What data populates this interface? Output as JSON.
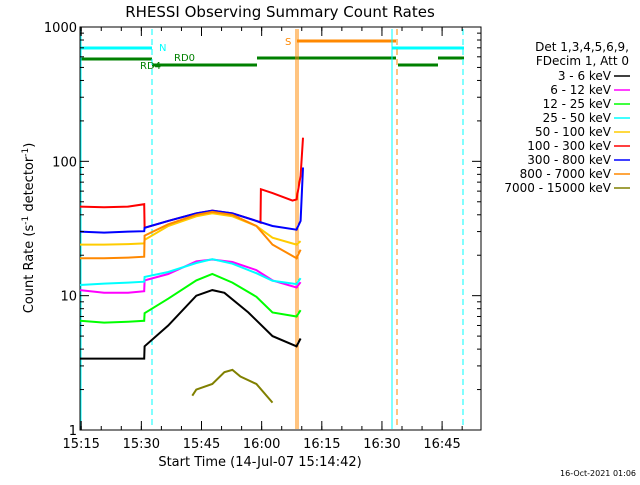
{
  "chart_data": {
    "type": "line",
    "title": "RHESSI Observing Summary Count Rates",
    "xlabel": "Start Time (14-Jul-07 15:14:42)",
    "ylabel_main": "Count Rate (s",
    "ylabel_sup1": "-1",
    "ylabel_mid": " detector",
    "ylabel_sup2": "-1",
    "ylabel_end": ")",
    "yscale": "log",
    "ylim": [
      1,
      1000
    ],
    "xlim_minutes": [
      0,
      100
    ],
    "y_ticks": [
      {
        "value": 1,
        "label": "1"
      },
      {
        "value": 10,
        "label": "10"
      },
      {
        "value": 100,
        "label": "100"
      },
      {
        "value": 1000,
        "label": "1000"
      }
    ],
    "x_ticks": [
      {
        "value": 0.3,
        "label": "15:15"
      },
      {
        "value": 15.3,
        "label": "15:30"
      },
      {
        "value": 30.3,
        "label": "15:45"
      },
      {
        "value": 45.3,
        "label": "16:00"
      },
      {
        "value": 60.3,
        "label": "16:15"
      },
      {
        "value": 75.3,
        "label": "16:30"
      },
      {
        "value": 90.3,
        "label": "16:45"
      }
    ],
    "legend_header": [
      "Det 1,3,4,5,6,9,",
      "FDecim 1, Att 0"
    ],
    "legend_position": "right",
    "series": [
      {
        "name": "3 - 6 keV",
        "color": "#000000",
        "points": [
          [
            0,
            3.4
          ],
          [
            6,
            3.4
          ],
          [
            12,
            3.4
          ],
          [
            16,
            3.4
          ],
          [
            16.1,
            4.2
          ],
          [
            22,
            6
          ],
          [
            29,
            10
          ],
          [
            33,
            11
          ],
          [
            36,
            10.5
          ],
          [
            42,
            7.5
          ],
          [
            48,
            5
          ],
          [
            54,
            4.2
          ],
          [
            55,
            4.8
          ]
        ]
      },
      {
        "name": "6 - 12 keV",
        "color": "#ff00ff",
        "points": [
          [
            0,
            11
          ],
          [
            6,
            10.5
          ],
          [
            12,
            10.5
          ],
          [
            16,
            10.8
          ],
          [
            16.1,
            13
          ],
          [
            22,
            14.5
          ],
          [
            29,
            18
          ],
          [
            33,
            18.6
          ],
          [
            38,
            17.8
          ],
          [
            44,
            15.5
          ],
          [
            48,
            13
          ],
          [
            54,
            11.5
          ],
          [
            55,
            12.6
          ]
        ]
      },
      {
        "name": "12 - 25 keV",
        "color": "#00ff00",
        "points": [
          [
            0,
            6.5
          ],
          [
            6,
            6.3
          ],
          [
            12,
            6.4
          ],
          [
            16,
            6.5
          ],
          [
            16.1,
            7.4
          ],
          [
            22,
            9.5
          ],
          [
            29,
            13
          ],
          [
            33,
            14.5
          ],
          [
            38,
            12.5
          ],
          [
            44,
            9.8
          ],
          [
            48,
            7.5
          ],
          [
            54,
            7
          ],
          [
            55,
            7.8
          ]
        ]
      },
      {
        "name": "25 - 50 keV",
        "color": "#00ffff",
        "points": [
          [
            0,
            12
          ],
          [
            6,
            12.3
          ],
          [
            12,
            12.5
          ],
          [
            16,
            12.7
          ],
          [
            16.1,
            13.8
          ],
          [
            22,
            15
          ],
          [
            29,
            17.5
          ],
          [
            33,
            18.7
          ],
          [
            38,
            17.3
          ],
          [
            44,
            14.7
          ],
          [
            48,
            12.9
          ],
          [
            54,
            12.2
          ],
          [
            55,
            13.5
          ]
        ]
      },
      {
        "name": "50 - 100 keV",
        "color": "#ffcc00",
        "points": [
          [
            0,
            24
          ],
          [
            6,
            24
          ],
          [
            12,
            24.2
          ],
          [
            16,
            24.5
          ],
          [
            16.1,
            26
          ],
          [
            22,
            33
          ],
          [
            29,
            39
          ],
          [
            33,
            41
          ],
          [
            38,
            39
          ],
          [
            44,
            33
          ],
          [
            48,
            27
          ],
          [
            54,
            24
          ],
          [
            55,
            25.5
          ]
        ]
      },
      {
        "name": "100 - 300 keV",
        "color": "#ff0000",
        "points": [
          [
            0,
            46
          ],
          [
            6,
            45.5
          ],
          [
            12,
            46
          ],
          [
            16,
            48
          ],
          [
            16.1,
            32
          ],
          [
            22,
            36
          ],
          [
            29,
            41
          ],
          [
            33,
            43
          ],
          [
            38,
            41
          ],
          [
            44,
            36
          ],
          [
            45,
            35
          ],
          [
            45.1,
            62
          ],
          [
            48,
            58
          ],
          [
            53,
            51
          ],
          [
            54,
            52
          ],
          [
            55,
            78
          ],
          [
            55.6,
            150
          ]
        ]
      },
      {
        "name": "300 - 800 keV",
        "color": "#0000ff",
        "points": [
          [
            0,
            30
          ],
          [
            6,
            29.5
          ],
          [
            12,
            30
          ],
          [
            16,
            30.2
          ],
          [
            16.1,
            32
          ],
          [
            22,
            36
          ],
          [
            29,
            41
          ],
          [
            33,
            43
          ],
          [
            38,
            41
          ],
          [
            44,
            36
          ],
          [
            48,
            33
          ],
          [
            54,
            31
          ],
          [
            55,
            36
          ],
          [
            55.6,
            90
          ]
        ]
      },
      {
        "name": "800 - 7000 keV",
        "color": "#ff8800",
        "points": [
          [
            0,
            19
          ],
          [
            6,
            19
          ],
          [
            12,
            19.2
          ],
          [
            16,
            19.5
          ],
          [
            16.1,
            28
          ],
          [
            22,
            34
          ],
          [
            29,
            40
          ],
          [
            33,
            42
          ],
          [
            38,
            40
          ],
          [
            44,
            33
          ],
          [
            48,
            24
          ],
          [
            54,
            19
          ],
          [
            55,
            22
          ]
        ]
      },
      {
        "name": "7000 - 15000 keV",
        "color": "#808000",
        "points": [
          [
            28,
            1.8
          ],
          [
            29,
            2
          ],
          [
            33,
            2.2
          ],
          [
            36,
            2.7
          ],
          [
            38,
            2.8
          ],
          [
            40,
            2.5
          ],
          [
            44,
            2.2
          ],
          [
            48,
            1.6
          ]
        ]
      }
    ],
    "annotations": [
      {
        "text": "N",
        "color": "#00ffff"
      },
      {
        "text": "S",
        "color": "#ff8800"
      },
      {
        "text": "RD4",
        "color": "#008000"
      },
      {
        "text": "RD0",
        "color": "#008000"
      }
    ],
    "timestamp": "16-Oct-2021 01:06"
  }
}
